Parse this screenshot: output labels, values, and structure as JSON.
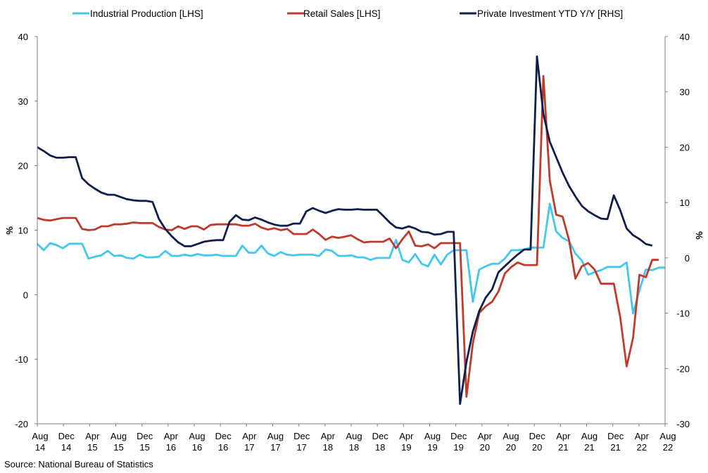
{
  "source": "Source: National Bureau of Statistics",
  "chart_data": {
    "type": "line",
    "title": "",
    "ylabel_left": "%",
    "ylabel_right": "%",
    "ylim_left": [
      -20,
      40
    ],
    "ylim_right": [
      -30,
      40
    ],
    "yticks_left": [
      "-20",
      "-10",
      "0",
      "10",
      "20",
      "30",
      "40"
    ],
    "yticks_right": [
      "-30",
      "-20",
      "-10",
      "0",
      "10",
      "20",
      "30",
      "40"
    ],
    "x_tick_labels": [
      [
        "Aug",
        "14"
      ],
      [
        "Dec",
        "14"
      ],
      [
        "Apr",
        "15"
      ],
      [
        "Aug",
        "15"
      ],
      [
        "Dec",
        "15"
      ],
      [
        "Apr",
        "16"
      ],
      [
        "Aug",
        "16"
      ],
      [
        "Dec",
        "16"
      ],
      [
        "Apr",
        "17"
      ],
      [
        "Aug",
        "17"
      ],
      [
        "Dec",
        "17"
      ],
      [
        "Apr",
        "18"
      ],
      [
        "Aug",
        "18"
      ],
      [
        "Dec",
        "18"
      ],
      [
        "Apr",
        "19"
      ],
      [
        "Aug",
        "19"
      ],
      [
        "Dec",
        "19"
      ],
      [
        "Apr",
        "20"
      ],
      [
        "Aug",
        "20"
      ],
      [
        "Dec",
        "20"
      ],
      [
        "Apr",
        "21"
      ],
      [
        "Aug",
        "21"
      ],
      [
        "Dec",
        "21"
      ],
      [
        "Apr",
        "22"
      ],
      [
        "Aug",
        "22"
      ]
    ],
    "grid": false,
    "legend_position": "top",
    "series": [
      {
        "name": "Industrial Production [LHS]",
        "color": "#41C8F0",
        "axis": "left",
        "values": [
          7.9,
          6.9,
          8.0,
          7.7,
          7.2,
          7.9,
          7.9,
          7.9,
          5.6,
          5.9,
          6.1,
          6.8,
          6.0,
          6.1,
          5.7,
          5.6,
          6.2,
          5.8,
          5.8,
          5.9,
          6.8,
          6.0,
          6.0,
          6.2,
          6.0,
          6.3,
          6.1,
          6.1,
          6.2,
          6.0,
          6.0,
          6.0,
          7.6,
          6.5,
          6.5,
          7.6,
          6.4,
          6.0,
          6.6,
          6.2,
          6.1,
          6.2,
          6.2,
          6.2,
          6.0,
          7.0,
          6.8,
          6.0,
          6.0,
          6.1,
          5.8,
          5.8,
          5.4,
          5.7,
          5.7,
          5.7,
          8.5,
          5.4,
          5.0,
          6.3,
          4.8,
          4.4,
          6.2,
          4.7,
          6.2,
          6.9,
          6.9,
          6.9,
          -1.1,
          3.9,
          4.4,
          4.8,
          4.8,
          5.6,
          6.9,
          6.9,
          7.0,
          7.3,
          7.3,
          7.3,
          14.1,
          9.8,
          8.8,
          8.3,
          6.4,
          5.3,
          3.1,
          3.5,
          3.8,
          4.3,
          4.3,
          4.3,
          5.0,
          -2.9,
          0.7,
          3.9,
          3.8,
          4.2,
          4.2
        ]
      },
      {
        "name": "Retail Sales [LHS]",
        "color": "#C0392B",
        "axis": "left",
        "values": [
          11.9,
          11.6,
          11.5,
          11.7,
          11.9,
          11.9,
          11.9,
          10.2,
          10.0,
          10.1,
          10.6,
          10.6,
          10.9,
          10.9,
          11.0,
          11.2,
          11.1,
          11.1,
          11.1,
          10.5,
          10.1,
          10.0,
          10.6,
          10.2,
          10.6,
          10.6,
          10.1,
          10.8,
          10.9,
          10.9,
          10.9,
          10.9,
          10.7,
          10.7,
          11.0,
          10.4,
          10.1,
          10.3,
          10.0,
          10.2,
          9.4,
          9.4,
          9.4,
          10.1,
          9.4,
          8.5,
          9.0,
          8.8,
          9.0,
          9.2,
          8.6,
          8.1,
          8.2,
          8.2,
          8.2,
          8.7,
          7.2,
          8.6,
          9.8,
          7.6,
          7.5,
          7.8,
          7.2,
          8.0,
          8.0,
          8.0,
          8.0,
          -15.8,
          -7.5,
          -2.8,
          -1.8,
          -1.1,
          0.5,
          3.3,
          4.3,
          5.0,
          4.6,
          4.6,
          4.6,
          33.9,
          17.7,
          12.4,
          12.1,
          8.5,
          2.5,
          4.4,
          4.9,
          3.9,
          1.7,
          1.7,
          1.7,
          -3.5,
          -11.1,
          -6.7,
          3.1,
          2.7,
          5.4,
          5.4
        ]
      },
      {
        "name": "Private Investment YTD Y/Y [RHS]",
        "color": "#0E1F4D",
        "axis": "right",
        "values": [
          20.0,
          19.3,
          18.5,
          18.1,
          18.1,
          18.2,
          18.2,
          14.4,
          13.3,
          12.5,
          11.8,
          11.4,
          11.4,
          11.0,
          10.6,
          10.4,
          10.3,
          10.3,
          10.1,
          7.0,
          5.2,
          3.9,
          2.8,
          2.1,
          2.1,
          2.5,
          2.9,
          3.1,
          3.2,
          3.2,
          6.5,
          7.7,
          6.9,
          6.8,
          7.3,
          6.9,
          6.4,
          6.0,
          5.8,
          5.8,
          6.2,
          6.2,
          8.4,
          9.0,
          8.5,
          8.1,
          8.5,
          8.8,
          8.7,
          8.7,
          8.8,
          8.7,
          8.7,
          8.7,
          7.6,
          6.4,
          5.5,
          5.3,
          5.7,
          5.3,
          4.7,
          4.6,
          4.2,
          4.3,
          4.7,
          4.7,
          -26.4,
          -18.8,
          -13.3,
          -9.6,
          -7.2,
          -5.7,
          -2.6,
          -1.5,
          -0.4,
          0.6,
          1.5,
          1.5,
          36.4,
          26.0,
          21.0,
          18.2,
          15.4,
          13.0,
          11.1,
          9.4,
          8.4,
          7.7,
          7.1,
          7.0,
          11.3,
          8.6,
          5.3,
          4.1,
          3.4,
          2.5,
          2.2
        ]
      }
    ]
  }
}
